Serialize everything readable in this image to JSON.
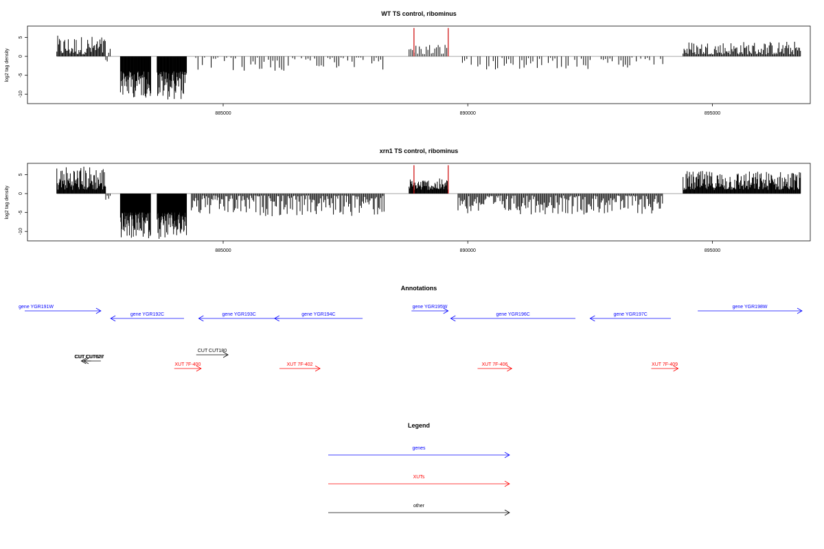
{
  "chart_data": [
    {
      "type": "bar",
      "title": "WT TS control, ribominus",
      "ylabel": "log2 tag density",
      "xlabel": "",
      "xlim": [
        881000,
        897000
      ],
      "ylim": [
        -12.5,
        8
      ],
      "x_ticks": [
        885000,
        890000,
        895000
      ],
      "x_tick_labels": [
        "885000",
        "890000",
        "895000"
      ],
      "y_ticks": [
        -10,
        -5,
        0,
        5
      ],
      "y_tick_labels": [
        "-10",
        "-5",
        "0",
        "5"
      ],
      "baseline": 0,
      "bar_color": "#000000",
      "highlight_color": "#cc0000",
      "highlights": [
        {
          "x": 888900,
          "y": 7.5
        },
        {
          "x": 889600,
          "y": 7.5
        }
      ],
      "segments": [
        {
          "x0": 881600,
          "x1": 882600,
          "min": 0.5,
          "max": 5.5,
          "step": 18,
          "sign": 1
        },
        {
          "x0": 882600,
          "x1": 882700,
          "min": -2,
          "max": 2,
          "step": 30,
          "sign": 1
        },
        {
          "x0": 882900,
          "x1": 883520,
          "min": 4,
          "max": 11,
          "step": 10,
          "sign": -1
        },
        {
          "x0": 883650,
          "x1": 884250,
          "min": 4,
          "max": 11.5,
          "step": 10,
          "sign": -1
        },
        {
          "x0": 884350,
          "x1": 888300,
          "min": 0.3,
          "max": 4,
          "step": 45,
          "sign": -1
        },
        {
          "x0": 888800,
          "x1": 889600,
          "min": 0.5,
          "max": 3.5,
          "step": 35,
          "sign": 1
        },
        {
          "x0": 889800,
          "x1": 894000,
          "min": 0.3,
          "max": 3.5,
          "step": 45,
          "sign": -1
        },
        {
          "x0": 894400,
          "x1": 896800,
          "min": 0.5,
          "max": 4,
          "step": 20,
          "sign": 1
        }
      ]
    },
    {
      "type": "bar",
      "title": "xrn1 TS control, ribominus",
      "ylabel": "log2 tag density",
      "xlabel": "",
      "xlim": [
        881000,
        897000
      ],
      "ylim": [
        -12.5,
        8
      ],
      "x_ticks": [
        885000,
        890000,
        895000
      ],
      "x_tick_labels": [
        "885000",
        "890000",
        "895000"
      ],
      "y_ticks": [
        -10,
        -5,
        0,
        5
      ],
      "y_tick_labels": [
        "-10",
        "-5",
        "0",
        "5"
      ],
      "baseline": 0,
      "bar_color": "#000000",
      "highlight_color": "#cc0000",
      "highlights": [
        {
          "x": 888900,
          "y": 7.5
        },
        {
          "x": 889600,
          "y": 7.5
        }
      ],
      "segments": [
        {
          "x0": 881600,
          "x1": 882600,
          "min": 1,
          "max": 7.5,
          "step": 12,
          "sign": 1
        },
        {
          "x0": 882600,
          "x1": 882700,
          "min": -2,
          "max": 2,
          "step": 30,
          "sign": 1
        },
        {
          "x0": 882900,
          "x1": 883520,
          "min": 5,
          "max": 12,
          "step": 8,
          "sign": -1
        },
        {
          "x0": 883650,
          "x1": 884250,
          "min": 5,
          "max": 12,
          "step": 8,
          "sign": -1
        },
        {
          "x0": 884350,
          "x1": 888300,
          "min": 0.5,
          "max": 6,
          "step": 22,
          "sign": -1
        },
        {
          "x0": 888800,
          "x1": 889600,
          "min": 1,
          "max": 4,
          "step": 12,
          "sign": 1
        },
        {
          "x0": 889800,
          "x1": 894000,
          "min": 0.5,
          "max": 5.5,
          "step": 22,
          "sign": -1
        },
        {
          "x0": 894400,
          "x1": 896800,
          "min": 1,
          "max": 6,
          "step": 12,
          "sign": 1
        }
      ]
    }
  ],
  "annotations": {
    "title": "Annotations",
    "xlim": [
      881000,
      897000
    ],
    "features": [
      {
        "label": "gene YGR191W",
        "kind": "gene",
        "strand": "+",
        "start": 880300,
        "end": 882500,
        "lane": 0,
        "label_at": "left"
      },
      {
        "label": "gene YGR192C",
        "kind": "gene",
        "strand": "-",
        "start": 882700,
        "end": 884200,
        "lane": 1
      },
      {
        "label": "gene YGR193C",
        "kind": "gene",
        "strand": "-",
        "start": 884500,
        "end": 886150,
        "lane": 1
      },
      {
        "label": "gene YGR194C",
        "kind": "gene",
        "strand": "-",
        "start": 886050,
        "end": 887850,
        "lane": 1
      },
      {
        "label": "gene YGR195W",
        "kind": "gene",
        "strand": "+",
        "start": 888850,
        "end": 889600,
        "lane": 0
      },
      {
        "label": "gene YGR196C",
        "kind": "gene",
        "strand": "-",
        "start": 889650,
        "end": 892200,
        "lane": 1
      },
      {
        "label": "gene YGR197C",
        "kind": "gene",
        "strand": "-",
        "start": 892500,
        "end": 894150,
        "lane": 1
      },
      {
        "label": "gene YGR198W",
        "kind": "gene",
        "strand": "+",
        "start": 894700,
        "end": 897200,
        "lane": 0
      },
      {
        "label": "CUT CUT180",
        "kind": "other",
        "strand": "+",
        "start": 884450,
        "end": 885100,
        "lane": 2
      },
      {
        "label": "CUT CUT628",
        "kind": "other",
        "strand": "-",
        "start": 882150,
        "end": 882500,
        "lane": 3,
        "label_offset": -5
      },
      {
        "label": "CUT CUT627",
        "kind": "other",
        "strand": "-",
        "start": 882100,
        "end": 882300,
        "lane": 3,
        "label_offset": 5
      },
      {
        "label": "XUT 7F-400",
        "kind": "XUT",
        "strand": "+",
        "start": 884000,
        "end": 884550,
        "lane": 4
      },
      {
        "label": "XUT 7F-402",
        "kind": "XUT",
        "strand": "+",
        "start": 886150,
        "end": 886980,
        "lane": 4
      },
      {
        "label": "XUT 7F-406",
        "kind": "XUT",
        "strand": "+",
        "start": 890200,
        "end": 890900,
        "lane": 4
      },
      {
        "label": "XUT 7F-409",
        "kind": "XUT",
        "strand": "+",
        "start": 893750,
        "end": 894300,
        "lane": 4
      }
    ]
  },
  "legend": {
    "title": "Legend",
    "items": [
      {
        "label": "genes",
        "color": "#0000ff"
      },
      {
        "label": "XUTs",
        "color": "#ff0000"
      },
      {
        "label": "other",
        "color": "#000000"
      }
    ]
  },
  "colors": {
    "gene": "#0000ff",
    "XUT": "#ff0000",
    "other": "#000000"
  }
}
